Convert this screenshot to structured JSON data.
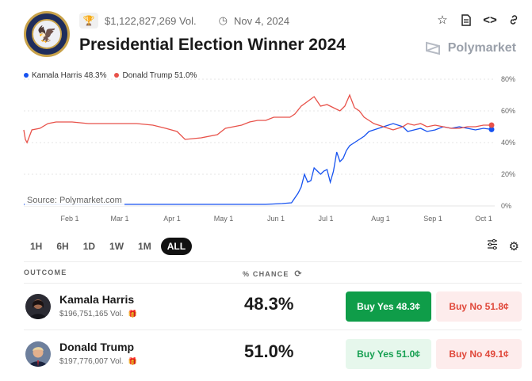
{
  "header": {
    "volume": "$1,122,827,269 Vol.",
    "date": "Nov 4, 2024",
    "title": "Presidential Election Winner 2024",
    "brand": "Polymarket",
    "icons": [
      "trophy-icon",
      "clock-icon",
      "star-icon",
      "document-icon",
      "code-icon",
      "link-icon"
    ]
  },
  "chart_data": {
    "type": "line",
    "x_tick_labels": [
      "Feb 1",
      "Mar 1",
      "Apr 1",
      "May 1",
      "Jun 1",
      "Jul 1",
      "Aug 1",
      "Sep 1",
      "Oct 1"
    ],
    "y_tick_labels": [
      "80%",
      "60%",
      "40%",
      "20%",
      "0%"
    ],
    "ylim": [
      0,
      80
    ],
    "grid": true,
    "legend_position": "top-left",
    "source_label": "Source: Polymarket.com",
    "series": [
      {
        "name": "Kamala Harris 48.3%",
        "color": "#1652f0",
        "points": [
          [
            0,
            1
          ],
          [
            10,
            1
          ],
          [
            20,
            1
          ],
          [
            30,
            1
          ],
          [
            40,
            1
          ],
          [
            50,
            1
          ],
          [
            60,
            1
          ],
          [
            70,
            1
          ],
          [
            80,
            1
          ],
          [
            90,
            1
          ],
          [
            100,
            1
          ],
          [
            110,
            1
          ],
          [
            120,
            1
          ],
          [
            130,
            1
          ],
          [
            140,
            1
          ],
          [
            150,
            1
          ],
          [
            160,
            1.5
          ],
          [
            166,
            2
          ],
          [
            170,
            8
          ],
          [
            172,
            12
          ],
          [
            174,
            20
          ],
          [
            176,
            15
          ],
          [
            178,
            16
          ],
          [
            180,
            24
          ],
          [
            182,
            22
          ],
          [
            184,
            20
          ],
          [
            186,
            22
          ],
          [
            188,
            23
          ],
          [
            190,
            15
          ],
          [
            192,
            22
          ],
          [
            194,
            34
          ],
          [
            196,
            28
          ],
          [
            198,
            30
          ],
          [
            200,
            35
          ],
          [
            202,
            38
          ],
          [
            205,
            40
          ],
          [
            208,
            42
          ],
          [
            211,
            44
          ],
          [
            214,
            47
          ],
          [
            217,
            48
          ],
          [
            220,
            49
          ],
          [
            223,
            50
          ],
          [
            226,
            51
          ],
          [
            229,
            52
          ],
          [
            232,
            51
          ],
          [
            235,
            50
          ],
          [
            238,
            47
          ],
          [
            242,
            48
          ],
          [
            246,
            49
          ],
          [
            250,
            47
          ],
          [
            255,
            48
          ],
          [
            260,
            50
          ],
          [
            265,
            49
          ],
          [
            270,
            50
          ],
          [
            275,
            49
          ],
          [
            280,
            48
          ],
          [
            285,
            49
          ],
          [
            290,
            48.3
          ]
        ]
      },
      {
        "name": "Donald Trump 51.0%",
        "color": "#e8524a",
        "points": [
          [
            0,
            48
          ],
          [
            1,
            42
          ],
          [
            2,
            40
          ],
          [
            5,
            48
          ],
          [
            10,
            49
          ],
          [
            15,
            52
          ],
          [
            20,
            53
          ],
          [
            30,
            53
          ],
          [
            40,
            52
          ],
          [
            50,
            52
          ],
          [
            60,
            52
          ],
          [
            70,
            52
          ],
          [
            80,
            51
          ],
          [
            88,
            49
          ],
          [
            95,
            47
          ],
          [
            100,
            42
          ],
          [
            110,
            43
          ],
          [
            120,
            45
          ],
          [
            125,
            49
          ],
          [
            130,
            50
          ],
          [
            135,
            51
          ],
          [
            140,
            53
          ],
          [
            145,
            54
          ],
          [
            150,
            54
          ],
          [
            155,
            56
          ],
          [
            160,
            56
          ],
          [
            165,
            56
          ],
          [
            168,
            58
          ],
          [
            172,
            63
          ],
          [
            176,
            66
          ],
          [
            180,
            69
          ],
          [
            184,
            63
          ],
          [
            188,
            64
          ],
          [
            192,
            62
          ],
          [
            196,
            60
          ],
          [
            199,
            63
          ],
          [
            202,
            70
          ],
          [
            205,
            62
          ],
          [
            208,
            60
          ],
          [
            211,
            56
          ],
          [
            214,
            54
          ],
          [
            217,
            52
          ],
          [
            220,
            51
          ],
          [
            223,
            50
          ],
          [
            226,
            49
          ],
          [
            229,
            48
          ],
          [
            232,
            49
          ],
          [
            235,
            50
          ],
          [
            238,
            52
          ],
          [
            242,
            51
          ],
          [
            246,
            52
          ],
          [
            250,
            50
          ],
          [
            255,
            51
          ],
          [
            260,
            50
          ],
          [
            265,
            49
          ],
          [
            270,
            49
          ],
          [
            275,
            50
          ],
          [
            280,
            50
          ],
          [
            285,
            51
          ],
          [
            290,
            51.0
          ]
        ]
      }
    ]
  },
  "time_ranges": [
    "1H",
    "6H",
    "1D",
    "1W",
    "1M",
    "ALL"
  ],
  "active_range": "ALL",
  "table": {
    "col_outcome": "OUTCOME",
    "col_chance": "% CHANCE",
    "rows": [
      {
        "name": "Kamala Harris",
        "volume": "$196,751,165 Vol.",
        "chance": "48.3%",
        "buy_yes": "Buy Yes 48.3¢",
        "buy_no": "Buy No 51.8¢"
      },
      {
        "name": "Donald Trump",
        "volume": "$197,776,007 Vol.",
        "chance": "51.0%",
        "buy_yes": "Buy Yes 51.0¢",
        "buy_no": "Buy No 49.1¢"
      }
    ]
  }
}
